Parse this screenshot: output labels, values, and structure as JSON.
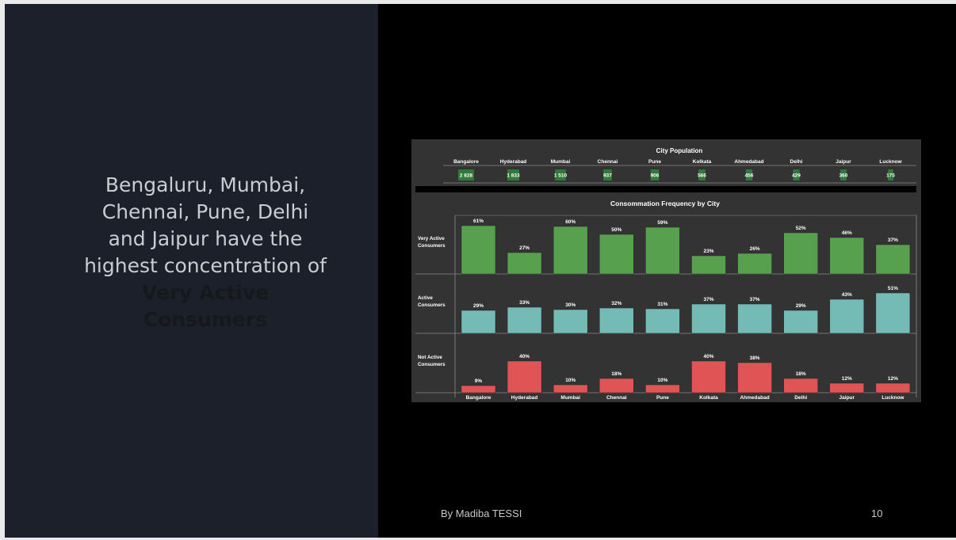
{
  "slide": {
    "headline_main": "Bengaluru, Mumbai, Chennai, Pune, Delhi and Jaipur have the highest concentration of ",
    "headline_emphasis": "Very Active Consumers",
    "author": "By Madiba TESSI",
    "page_number": "10"
  },
  "chart_data": [
    {
      "type": "table",
      "title": "City Population",
      "columns": [
        "Bangalore",
        "Hyderabad",
        "Mumbai",
        "Chennai",
        "Pune",
        "Kolkata",
        "Ahmedabad",
        "Delhi",
        "Jaipur",
        "Lucknow"
      ],
      "values": [
        2828,
        1833,
        1510,
        937,
        906,
        566,
        456,
        429,
        360,
        175
      ],
      "value_labels": [
        "2 828",
        "1 833",
        "1 510",
        "937",
        "906",
        "566",
        "456",
        "429",
        "360",
        "175"
      ],
      "highlight_color": "#2f7a3a"
    },
    {
      "type": "bar",
      "title": "Consommation Frequency by City",
      "categories": [
        "Bangalore",
        "Hyderabad",
        "Mumbai",
        "Chennai",
        "Pune",
        "Kolkata",
        "Ahmedabad",
        "Delhi",
        "Jaipur",
        "Lucknow"
      ],
      "series": [
        {
          "name": "Very Active Consumers",
          "values": [
            61,
            27,
            60,
            50,
            59,
            23,
            26,
            52,
            46,
            37
          ],
          "labels": [
            "61%",
            "27%",
            "60%",
            "50%",
            "59%",
            "23%",
            "26%",
            "52%",
            "46%",
            "37%"
          ],
          "color": "#57a04e"
        },
        {
          "name": "Active Consumers",
          "values": [
            29,
            33,
            30,
            32,
            31,
            37,
            37,
            29,
            43,
            51
          ],
          "labels": [
            "29%",
            "33%",
            "30%",
            "32%",
            "31%",
            "37%",
            "37%",
            "29%",
            "43%",
            "51%"
          ],
          "color": "#74bab5"
        },
        {
          "name": "Not Active Consumers",
          "values": [
            9,
            40,
            10,
            18,
            10,
            40,
            38,
            18,
            12,
            12
          ],
          "labels": [
            "9%",
            "40%",
            "10%",
            "18%",
            "10%",
            "40%",
            "38%",
            "18%",
            "12%",
            "12%"
          ],
          "color": "#e05455"
        }
      ],
      "grid": false,
      "legend": "row-labels-left"
    }
  ]
}
